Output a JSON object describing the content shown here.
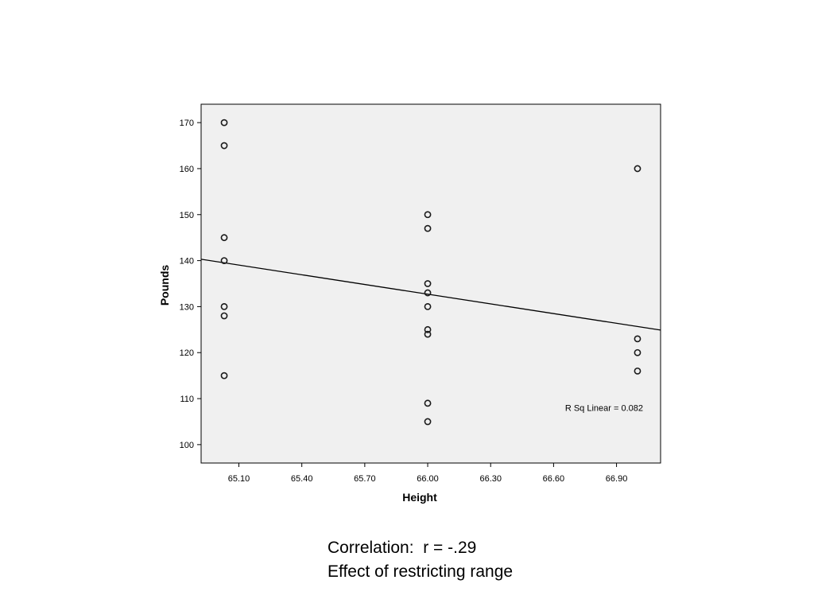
{
  "chart_data": {
    "type": "scatter",
    "xlabel": "Height",
    "ylabel": "Pounds",
    "xlim": [
      64.92,
      67.11
    ],
    "ylim": [
      96,
      174
    ],
    "xticks": [
      "65.10",
      "65.40",
      "65.70",
      "66.00",
      "66.30",
      "66.60",
      "66.90"
    ],
    "yticks": [
      "100",
      "110",
      "120",
      "130",
      "140",
      "150",
      "160",
      "170"
    ],
    "points": [
      {
        "x": 65.03,
        "y": 170
      },
      {
        "x": 65.03,
        "y": 165
      },
      {
        "x": 65.03,
        "y": 145
      },
      {
        "x": 65.03,
        "y": 140
      },
      {
        "x": 65.03,
        "y": 130
      },
      {
        "x": 65.03,
        "y": 128
      },
      {
        "x": 65.03,
        "y": 115
      },
      {
        "x": 66.0,
        "y": 150
      },
      {
        "x": 66.0,
        "y": 147
      },
      {
        "x": 66.0,
        "y": 135
      },
      {
        "x": 66.0,
        "y": 133
      },
      {
        "x": 66.0,
        "y": 130
      },
      {
        "x": 66.0,
        "y": 125
      },
      {
        "x": 66.0,
        "y": 124
      },
      {
        "x": 66.0,
        "y": 109
      },
      {
        "x": 66.0,
        "y": 105
      },
      {
        "x": 67.0,
        "y": 160
      },
      {
        "x": 67.0,
        "y": 123
      },
      {
        "x": 67.0,
        "y": 120
      },
      {
        "x": 67.0,
        "y": 116
      }
    ],
    "fit_line": {
      "x": [
        64.92,
        67.11
      ],
      "y": [
        140.3,
        124.9
      ]
    },
    "annotation": "R Sq Linear = 0.082",
    "grid": false,
    "colors": {
      "plot_background": "#f0f0f0",
      "marker_stroke": "#1a1a1a",
      "line": "#000000"
    }
  },
  "caption": {
    "line1": "Correlation:  r = -.29",
    "line2": "Effect of restricting range"
  }
}
